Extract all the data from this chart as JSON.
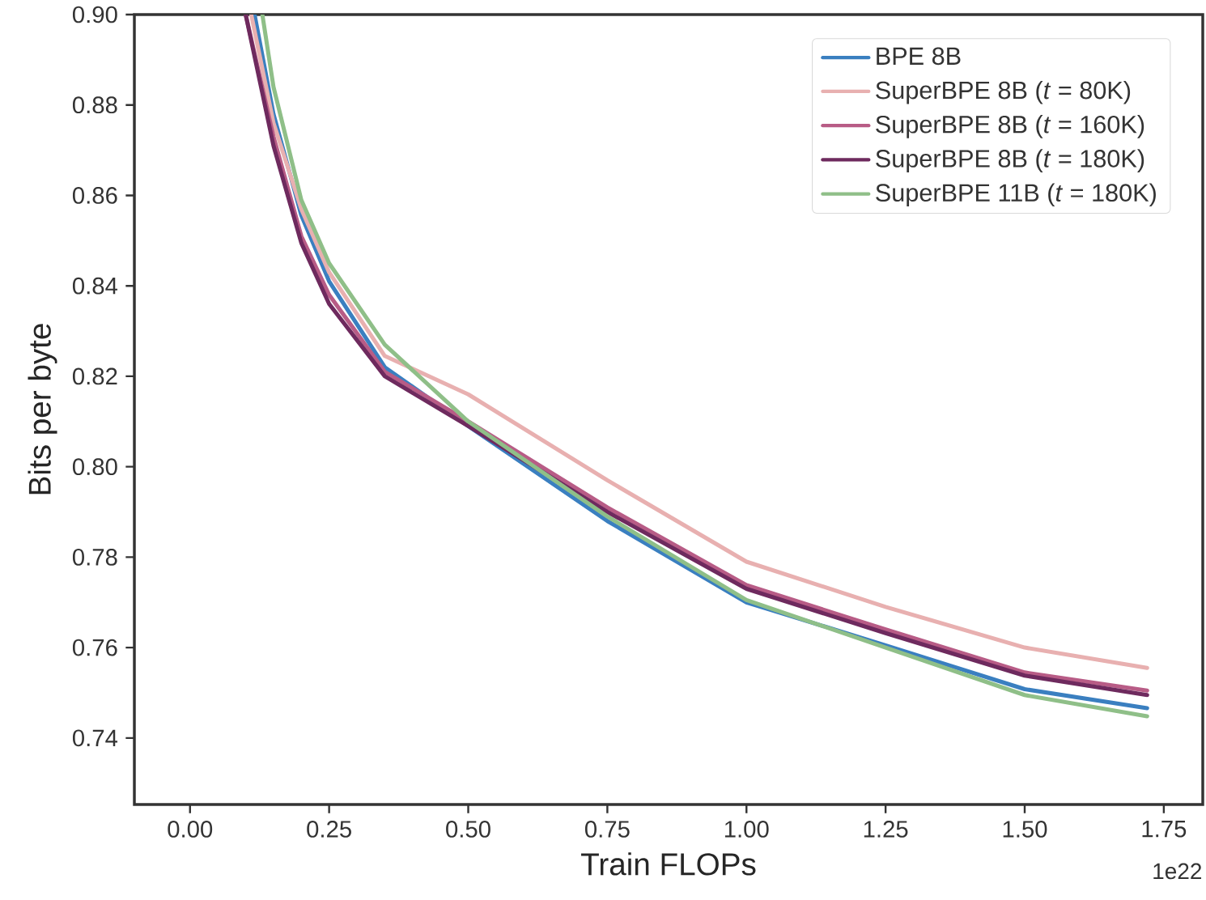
{
  "chart_data": {
    "type": "line",
    "xlabel": "Train FLOPs",
    "ylabel": "Bits per byte",
    "annotations": [
      "1e22"
    ],
    "xlim": [
      -0.1,
      1.82
    ],
    "ylim": [
      0.7253,
      0.9
    ],
    "xticks": [
      {
        "value": 0,
        "label": "0.00"
      },
      {
        "value": 0.25,
        "label": "0.25"
      },
      {
        "value": 0.5,
        "label": "0.50"
      },
      {
        "value": 0.75,
        "label": "0.75"
      },
      {
        "value": 1.0,
        "label": "1.00"
      },
      {
        "value": 1.25,
        "label": "1.25"
      },
      {
        "value": 1.5,
        "label": "1.50"
      },
      {
        "value": 1.75,
        "label": "1.75"
      }
    ],
    "yticks": [
      {
        "value": 0.74,
        "label": "0.74"
      },
      {
        "value": 0.76,
        "label": "0.76"
      },
      {
        "value": 0.78,
        "label": "0.78"
      },
      {
        "value": 0.8,
        "label": "0.80"
      },
      {
        "value": 0.82,
        "label": "0.82"
      },
      {
        "value": 0.84,
        "label": "0.84"
      },
      {
        "value": 0.86,
        "label": "0.86"
      },
      {
        "value": 0.88,
        "label": "0.88"
      },
      {
        "value": 0.9,
        "label": "0.90"
      }
    ],
    "grid": false,
    "legend": "top right",
    "marker": "none",
    "line_style": "solid",
    "series": [
      {
        "name": "BPE 8B",
        "color": "#3a7fc0",
        "x": [
          0.116,
          0.15,
          0.2,
          0.25,
          0.35,
          0.5,
          0.75,
          1.0,
          1.25,
          1.5,
          1.72
        ],
        "values": [
          0.9,
          0.878,
          0.8556,
          0.841,
          0.822,
          0.809,
          0.788,
          0.77,
          0.7605,
          0.7508,
          0.7466
        ]
      },
      {
        "name": "SuperBPE 8B (*t* = 80K)",
        "color": "#e8b0b0",
        "x": [
          0.11,
          0.15,
          0.2,
          0.25,
          0.35,
          0.5,
          0.75,
          1.0,
          1.25,
          1.5,
          1.72
        ],
        "values": [
          0.9,
          0.876,
          0.857,
          0.843,
          0.8245,
          0.816,
          0.797,
          0.779,
          0.769,
          0.76,
          0.7555
        ]
      },
      {
        "name": "SuperBPE 8B (*t* = 160K)",
        "color": "#b85c86",
        "x": [
          0.1,
          0.15,
          0.2,
          0.25,
          0.35,
          0.5,
          0.75,
          1.0,
          1.25,
          1.5,
          1.72
        ],
        "values": [
          0.9,
          0.873,
          0.851,
          0.838,
          0.821,
          0.81,
          0.791,
          0.7738,
          0.764,
          0.7545,
          0.7505
        ]
      },
      {
        "name": "SuperBPE 8B (*t* = 180K)",
        "color": "#6e2a5e",
        "x": [
          0.1,
          0.15,
          0.2,
          0.25,
          0.35,
          0.5,
          0.75,
          1.0,
          1.25,
          1.5,
          1.72
        ],
        "values": [
          0.9,
          0.871,
          0.8495,
          0.836,
          0.82,
          0.809,
          0.79,
          0.773,
          0.7632,
          0.7538,
          0.7495
        ]
      },
      {
        "name": "SuperBPE 11B (*t* = 180K)",
        "color": "#8fbf88",
        "x": [
          0.13,
          0.15,
          0.2,
          0.25,
          0.35,
          0.5,
          0.75,
          1.0,
          1.25,
          1.5,
          1.72
        ],
        "values": [
          0.9,
          0.884,
          0.859,
          0.845,
          0.827,
          0.81,
          0.789,
          0.7705,
          0.76,
          0.7495,
          0.7448
        ]
      }
    ]
  }
}
